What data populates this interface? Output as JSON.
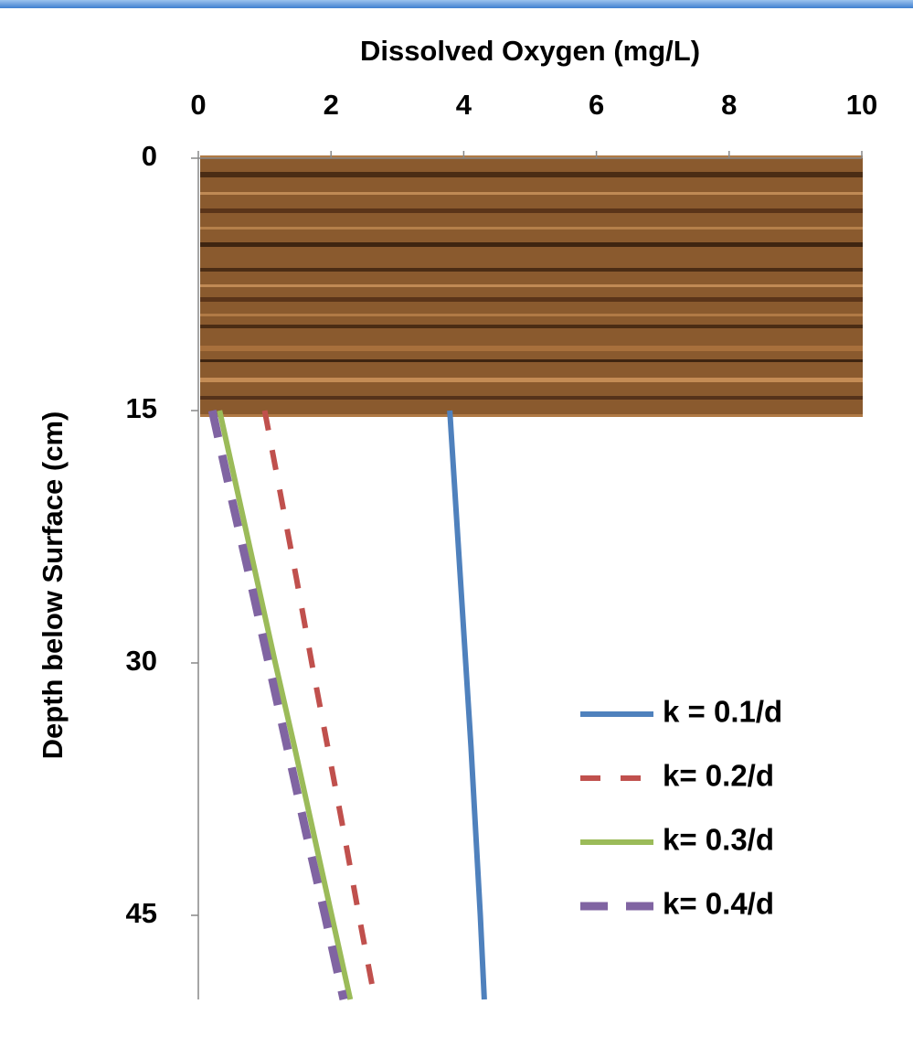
{
  "chart_data": {
    "type": "line",
    "title": "Dissolved Oxygen (mg/L)",
    "y_label": "Depth below Surface (cm)",
    "xlim": [
      0,
      10
    ],
    "xticks": [
      0,
      2,
      4,
      6,
      8,
      10
    ],
    "x_axis_position": "top",
    "ylim": [
      0,
      50
    ],
    "yticks": [
      0,
      15,
      30,
      45
    ],
    "y_inverted": true,
    "y": [
      15,
      20,
      25,
      30,
      35,
      40,
      45,
      50
    ],
    "series": [
      {
        "name": "k = 0.1/d",
        "color": "#4f81bd",
        "dash": "solid",
        "values": [
          3.79,
          3.87,
          3.95,
          4.03,
          4.11,
          4.18,
          4.25,
          4.31
        ]
      },
      {
        "name": "k= 0.2/d",
        "color": "#c0504d",
        "dash": "dashed",
        "values": [
          1.0,
          1.24,
          1.48,
          1.71,
          1.95,
          2.19,
          2.42,
          2.66
        ]
      },
      {
        "name": "k= 0.3/d",
        "color": "#9bbb59",
        "dash": "solid",
        "values": [
          0.32,
          0.6,
          0.88,
          1.16,
          1.45,
          1.73,
          2.01,
          2.29
        ]
      },
      {
        "name": "k= 0.4/d",
        "color": "#8064a2",
        "dash": "long-dash",
        "values": [
          0.21,
          0.49,
          0.78,
          1.06,
          1.34,
          1.62,
          1.91,
          2.19
        ]
      }
    ],
    "legend": "lower-right",
    "grid": false
  }
}
